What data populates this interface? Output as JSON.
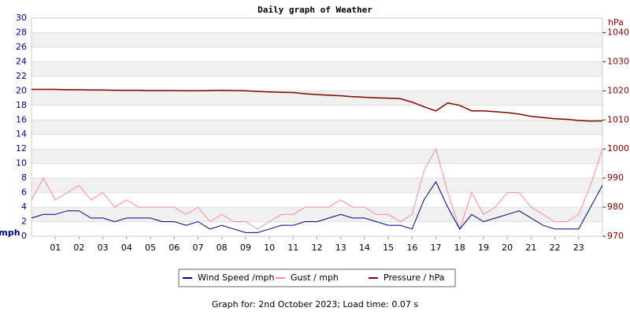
{
  "chart_data": {
    "type": "line",
    "title": "Daily graph of Weather",
    "ylabel": "mph",
    "y2label": "hPa",
    "caption": "Graph for: 2nd October 2023; Load time: 0.07 s",
    "x": [
      0,
      0.5,
      1,
      1.5,
      2,
      2.5,
      3,
      3.5,
      4,
      4.5,
      5,
      5.5,
      6,
      6.5,
      7,
      7.5,
      8,
      8.5,
      9,
      9.5,
      10,
      10.5,
      11,
      11.5,
      12,
      12.5,
      13,
      13.5,
      14,
      14.5,
      15,
      15.5,
      16,
      16.5,
      17,
      17.5,
      18,
      18.5,
      19,
      19.5,
      20,
      20.5,
      21,
      21.5,
      22,
      22.5,
      23,
      23.5,
      24
    ],
    "xlim": [
      0,
      24
    ],
    "xticks": [
      {
        "value": 1,
        "label": "01"
      },
      {
        "value": 2,
        "label": "02"
      },
      {
        "value": 3,
        "label": "03"
      },
      {
        "value": 4,
        "label": "04"
      },
      {
        "value": 5,
        "label": "05"
      },
      {
        "value": 6,
        "label": "06"
      },
      {
        "value": 7,
        "label": "07"
      },
      {
        "value": 8,
        "label": "08"
      },
      {
        "value": 9,
        "label": "09"
      },
      10,
      11,
      12,
      13,
      14,
      15,
      16,
      17,
      18,
      19,
      20,
      21,
      22,
      23
    ],
    "ylim": [
      0,
      30
    ],
    "yticks": [
      0,
      2,
      4,
      6,
      8,
      10,
      12,
      14,
      16,
      18,
      20,
      22,
      24,
      26,
      28,
      30
    ],
    "y2lim": [
      970,
      1045
    ],
    "y2ticks": [
      970,
      980,
      990,
      1000,
      1010,
      1020,
      1030,
      1040
    ],
    "grid": true,
    "series": [
      {
        "name": "Wind Speed /mph",
        "color": "#000080",
        "values": [
          2.5,
          3,
          3,
          3.5,
          3.5,
          2.5,
          2.5,
          2,
          2.5,
          2.5,
          2.5,
          2,
          2,
          1.5,
          2,
          1,
          1.5,
          1,
          0.5,
          0.5,
          1,
          1.5,
          1.5,
          2,
          2,
          2.5,
          3,
          2.5,
          2.5,
          2,
          1.5,
          1.5,
          1,
          5,
          7.5,
          4,
          1,
          3,
          2,
          2.5,
          3,
          3.5,
          2.5,
          1.5,
          1,
          1,
          1,
          4,
          7
        ]
      },
      {
        "name": "Gust / mph",
        "color": "#ff88aa",
        "values": [
          5,
          8,
          5,
          6,
          7,
          5,
          6,
          4,
          5,
          4,
          4,
          4,
          4,
          3,
          4,
          2,
          3,
          2,
          2,
          1,
          2,
          3,
          3,
          4,
          4,
          4,
          5,
          4,
          4,
          3,
          3,
          2,
          3,
          9,
          12,
          6,
          1,
          6,
          3,
          4,
          6,
          6,
          4,
          3,
          2,
          2,
          3,
          7,
          12
        ]
      },
      {
        "name": "Pressure / hPa",
        "color": "#800000",
        "axis": "y2",
        "values": [
          1020.5,
          1020.5,
          1020.5,
          1020.4,
          1020.4,
          1020.3,
          1020.3,
          1020.2,
          1020.2,
          1020.2,
          1020.1,
          1020.1,
          1020.1,
          1020.0,
          1020.0,
          1020.1,
          1020.2,
          1020.1,
          1020.0,
          1019.8,
          1019.6,
          1019.5,
          1019.4,
          1019.0,
          1018.7,
          1018.5,
          1018.3,
          1018.0,
          1017.8,
          1017.6,
          1017.5,
          1017.3,
          1016.1,
          1014.5,
          1013.1,
          1015.8,
          1015.0,
          1013.1,
          1013.1,
          1012.8,
          1012.5,
          1012.0,
          1011.2,
          1010.8,
          1010.4,
          1010.2,
          1009.8,
          1009.6,
          1009.7
        ]
      }
    ]
  }
}
